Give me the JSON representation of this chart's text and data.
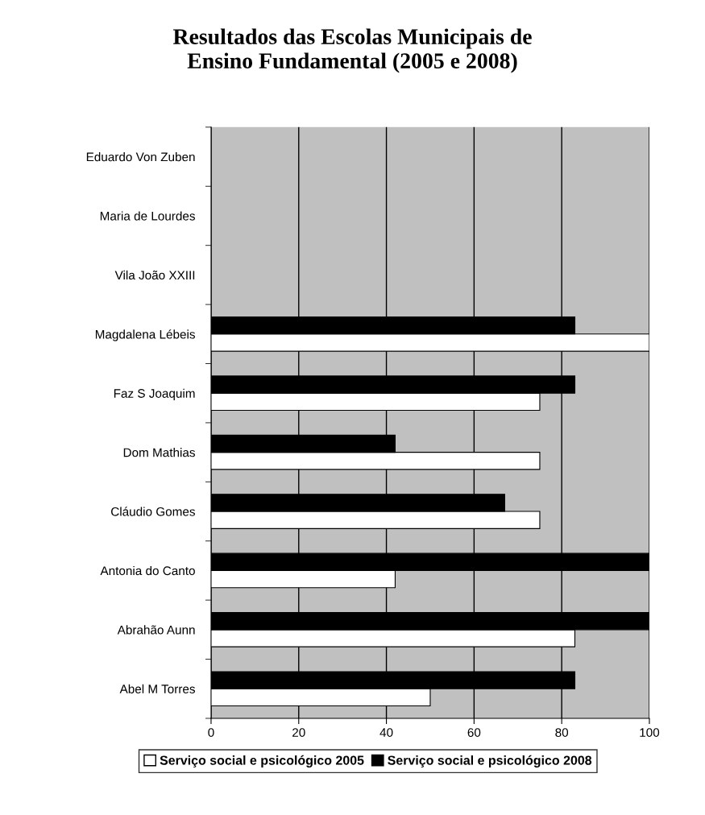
{
  "chart_data": {
    "type": "bar",
    "orientation": "horizontal",
    "title": "Resultados das Escolas Municipais de\nEnsino Fundamental (2005 e 2008)",
    "categories": [
      "Eduardo Von Zuben",
      "Maria de Lourdes",
      "Vila João XXIII",
      "Magdalena Lébeis",
      "Faz S Joaquim",
      "Dom Mathias",
      "Cláudio Gomes",
      "Antonia do Canto",
      "Abrahão Aunn",
      "Abel M Torres"
    ],
    "series": [
      {
        "name": "Serviço social e psicológico 2005",
        "color": "#ffffff",
        "values": [
          null,
          null,
          null,
          100,
          75,
          75,
          75,
          42,
          83,
          50
        ]
      },
      {
        "name": "Serviço social e psicológico 2008",
        "color": "#000000",
        "values": [
          null,
          null,
          null,
          83,
          83,
          42,
          67,
          100,
          100,
          83
        ]
      }
    ],
    "xlim": [
      0,
      100
    ],
    "xticks": [
      0,
      20,
      40,
      60,
      80,
      100
    ],
    "grid": "x",
    "legend": "bottom"
  }
}
